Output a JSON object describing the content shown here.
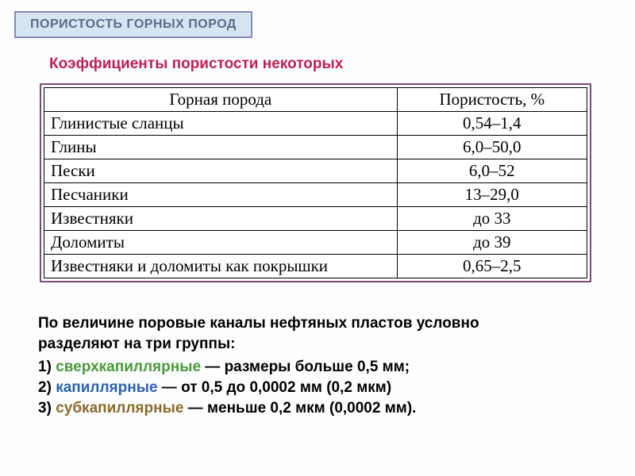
{
  "title": "ПОРИСТОСТЬ ГОРНЫХ ПОРОД",
  "subtitle": "Коэффициенты пористости некоторых",
  "table": {
    "columns": [
      "Горная порода",
      "Пористость, %"
    ],
    "rows": [
      [
        "Глинистые сланцы",
        "0,54–1,4"
      ],
      [
        "Глины",
        "6,0–50,0"
      ],
      [
        "Пески",
        "6,0–52"
      ],
      [
        "Песчаники",
        "13–29,0"
      ],
      [
        "Известняки",
        "до 33"
      ],
      [
        "Доломиты",
        "до 39"
      ],
      [
        "Известняки и доломиты как покрышки",
        "0,65–2,5"
      ]
    ]
  },
  "bottom": {
    "intro1": "По величине поровые каналы нефтяных пластов условно",
    "intro2": "разделяют на три группы:",
    "line1_num": "1) ",
    "line1_term": "сверхкапиллярные",
    "line1_rest": " — размеры больше 0,5 мм;",
    "line2_num": "2) ",
    "line2_term": "капиллярные",
    "line2_rest": " — от 0,5 до 0,0002 мм (0,2 мкм)",
    "line3_num": "3) ",
    "line3_term": "субкапиллярные",
    "line3_rest": " — меньше 0,2 мкм (0,0002 мм)."
  },
  "colors": {
    "title_bg": "#d5e5f2",
    "title_border": "#8b88c0",
    "title_text": "#5a6b8a",
    "subtitle_text": "#c02050",
    "table_outer_border": "#7a4a7a",
    "cell_border": "#000000",
    "term_green": "#4a9a3a",
    "term_blue": "#2a60b0",
    "term_brown": "#8a6a2a",
    "body_text": "#000000",
    "page_bg": "#fdfeff"
  }
}
